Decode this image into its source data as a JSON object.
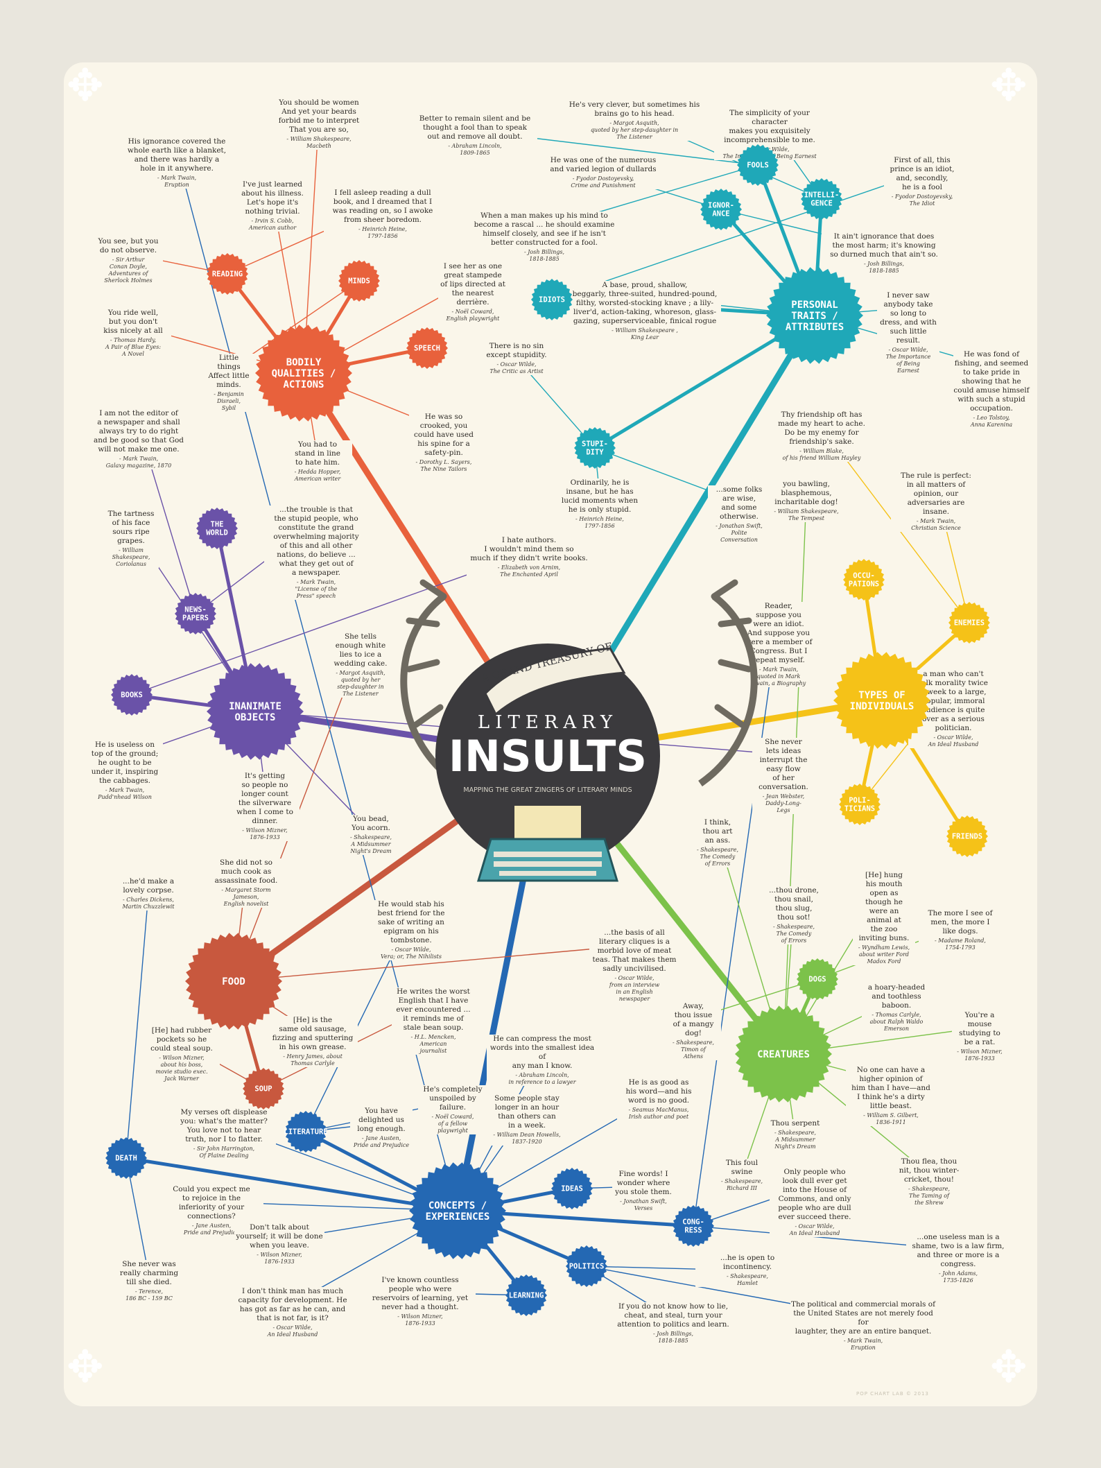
{
  "title": {
    "banner": "A GRAND TREASURY OF",
    "line1": "LITERARY",
    "line2": "INSULTS",
    "subtitle": "MAPPING THE GREAT ZINGERS OF LITERARY MINDS"
  },
  "credit": "POP CHART LAB © 2013",
  "colors": {
    "bodily": "#e8613c",
    "personal": "#1fa8b8",
    "inanimate": "#6a52a8",
    "types": "#f5c218",
    "creatures": "#7cc24a",
    "concepts": "#2468b3",
    "food": "#c8583e",
    "background": "#faf6ea"
  },
  "hubs": [
    {
      "id": "bodily",
      "label": "BODILY\nQUALITIES /\nACTIONS",
      "color": "#e8613c",
      "size": "major"
    },
    {
      "id": "reading",
      "label": "READING",
      "color": "#e8613c",
      "size": "minor"
    },
    {
      "id": "minds",
      "label": "MINDS",
      "color": "#e8613c",
      "size": "minor"
    },
    {
      "id": "speech",
      "label": "SPEECH",
      "color": "#e8613c",
      "size": "minor"
    },
    {
      "id": "personal",
      "label": "PERSONAL\nTRAITS /\nATTRIBUTES",
      "color": "#1fa8b8",
      "size": "major"
    },
    {
      "id": "fools",
      "label": "FOOLS",
      "color": "#1fa8b8",
      "size": "minor"
    },
    {
      "id": "ignorance",
      "label": "IGNOR-\nANCE",
      "color": "#1fa8b8",
      "size": "minor"
    },
    {
      "id": "intelligence",
      "label": "INTELLI-\nGENCE",
      "color": "#1fa8b8",
      "size": "minor"
    },
    {
      "id": "idiots",
      "label": "IDIOTS",
      "color": "#1fa8b8",
      "size": "minor"
    },
    {
      "id": "stupidity",
      "label": "STUPI-\nDITY",
      "color": "#1fa8b8",
      "size": "minor"
    },
    {
      "id": "inanimate",
      "label": "INANIMATE\nOBJECTS",
      "color": "#6a52a8",
      "size": "major"
    },
    {
      "id": "world",
      "label": "THE\nWORLD",
      "color": "#6a52a8",
      "size": "minor"
    },
    {
      "id": "newspapers",
      "label": "NEWS-\nPAPERS",
      "color": "#6a52a8",
      "size": "minor"
    },
    {
      "id": "books",
      "label": "BOOKS",
      "color": "#6a52a8",
      "size": "minor"
    },
    {
      "id": "types",
      "label": "TYPES OF\nINDIVIDUALS",
      "color": "#f5c218",
      "size": "major"
    },
    {
      "id": "occupations",
      "label": "OCCU-\nPATIONS",
      "color": "#f5c218",
      "size": "minor"
    },
    {
      "id": "enemies",
      "label": "ENEMIES",
      "color": "#f5c218",
      "size": "minor"
    },
    {
      "id": "politicians",
      "label": "POLI-\nTICIANS",
      "color": "#f5c218",
      "size": "minor"
    },
    {
      "id": "friends",
      "label": "FRIENDS",
      "color": "#f5c218",
      "size": "minor"
    },
    {
      "id": "food",
      "label": "FOOD",
      "color": "#c8583e",
      "size": "major"
    },
    {
      "id": "soup",
      "label": "SOUP",
      "color": "#c8583e",
      "size": "minor"
    },
    {
      "id": "creatures",
      "label": "CREATURES",
      "color": "#7cc24a",
      "size": "major"
    },
    {
      "id": "dogs",
      "label": "DOGS",
      "color": "#7cc24a",
      "size": "minor"
    },
    {
      "id": "concepts",
      "label": "CONCEPTS /\nEXPERIENCES",
      "color": "#2468b3",
      "size": "major"
    },
    {
      "id": "death",
      "label": "DEATH",
      "color": "#2468b3",
      "size": "minor"
    },
    {
      "id": "literature",
      "label": "LITERATURE",
      "color": "#2468b3",
      "size": "minor"
    },
    {
      "id": "ideas",
      "label": "IDEAS",
      "color": "#2468b3",
      "size": "minor"
    },
    {
      "id": "congress",
      "label": "CONG-\nRESS",
      "color": "#2468b3",
      "size": "minor"
    },
    {
      "id": "politics",
      "label": "POLITICS",
      "color": "#2468b3",
      "size": "minor"
    },
    {
      "id": "learning",
      "label": "LEARNING",
      "color": "#2468b3",
      "size": "minor"
    }
  ],
  "quotes": [
    {
      "text": "You should be women\nAnd yet your beards\nforbid me to interpret\nThat you are so,",
      "attr": "- William Shakespeare,\nMacbeth"
    },
    {
      "text": "His ignorance covered the\nwhole earth like a blanket,\nand there was hardly a\nhole in it anywhere.",
      "attr": "- Mark Twain,\nEruption"
    },
    {
      "text": "I've just learned\nabout his illness.\nLet's hope it's\nnothing trivial.",
      "attr": "- Irvin S. Cobb,\nAmerican author"
    },
    {
      "text": "I fell asleep reading a dull\nbook, and I dreamed that I\nwas reading on, so I awoke\nfrom sheer boredom.",
      "attr": "- Heinrich Heine,\n1797-1856"
    },
    {
      "text": "Better to remain silent and be\nthought a fool than to speak\nout and remove all doubt.",
      "attr": "- Abraham Lincoln,\n1809-1865"
    },
    {
      "text": "He's very clever, but sometimes his\nbrains go to his head.",
      "attr": "- Margot Asquith,\nquoted by her step-daughter in\nThe Listener"
    },
    {
      "text": "The simplicity of your character\nmakes you exquisitely\nincomprehensible to me.",
      "attr": "- Oscar Wilde,\nThe Importance of Being Earnest"
    },
    {
      "text": "He was one of the numerous\nand varied legion of dullards",
      "attr": "- Fyodor Dostoyevsky,\nCrime and Punishment"
    },
    {
      "text": "First of all, this\nprince is an idiot,\nand, secondly,\nhe is a fool",
      "attr": "- Fyodor Dostoyevsky,\nThe Idiot"
    },
    {
      "text": "When a man makes up his mind to\nbecome a rascal ... he should examine\nhimself closely, and see if he isn't\nbetter constructed for a fool.",
      "attr": "- Josh Billings,\n1818-1885"
    },
    {
      "text": "It ain't ignorance that does\nthe most harm; it's knowing\nso durned much that ain't so.",
      "attr": "- Josh Billings,\n1818-1885"
    },
    {
      "text": "You see, but you\ndo not observe.",
      "attr": "- Sir Arthur\nConan Doyle,\nAdventures of\nSherlock Holmes"
    },
    {
      "text": "I see her as one\ngreat stampede\nof lips directed at\nthe nearest\nderrière.",
      "attr": "- Noël Coward,\nEnglish playwright"
    },
    {
      "text": "A base, proud, shallow,\nbeggarly, three-suited, hundred-pound,\nfilthy, worsted-stocking knave ; a lily-\nliver'd, action-taking, whoreson, glass-\ngazing, superserviceable, finical rogue",
      "attr": "- William Shakespeare ,\nKing Lear"
    },
    {
      "text": "I never saw\nanybody take\nso long to\ndress, and with\nsuch little\nresult.",
      "attr": "- Oscar Wilde,\nThe Importance\nof Being\nEarnest"
    },
    {
      "text": "You ride well,\nbut you don't\nkiss nicely at all",
      "attr": "- Thomas Hardy,\nA Pair of Blue Eyes:\nA Novel"
    },
    {
      "text": "Little\nthings\nAffect little\nminds.",
      "attr": "- Benjamin\nDisraeli,\nSybil"
    },
    {
      "text": "There is no sin\nexcept stupidity.",
      "attr": "- Oscar Wilde,\nThe Critic as Artist"
    },
    {
      "text": "He was fond of\nfishing, and seemed\nto take pride in\nshowing that he\ncould amuse himself\nwith such a stupid\noccupation.",
      "attr": "- Leo Tolstoy,\nAnna Karenina"
    },
    {
      "text": "I am not the editor of\na newspaper and shall\nalways try to do right\nand be good so that God\nwill not make me one.",
      "attr": "- Mark Twain,\nGalaxy magazine, 1870"
    },
    {
      "text": "He was so\ncrooked, you\ncould have used\nhis spine for a\nsafety-pin.",
      "attr": "- Dorothy L. Sayers,\nThe Nine Tailors"
    },
    {
      "text": "Thy friendship oft has\nmade my heart to ache.\nDo be my enemy for\nfriendship's sake.",
      "attr": "- William Blake,\nof his friend William Hayley"
    },
    {
      "text": "You had to\nstand in line\nto hate him.",
      "attr": "- Hedda Hopper,\nAmerican writer"
    },
    {
      "text": "Ordinarily, he is\ninsane, but he has\nlucid moments when\nhe is only stupid.",
      "attr": "- Heinrich Heine,\n1797-1856"
    },
    {
      "text": "you bawling,\nblasphemous,\nincharitable dog!",
      "attr": "- William Shakespeare,\nThe Tempest"
    },
    {
      "text": "The rule is perfect:\nin all matters of\nopinion, our\nadversaries are\ninsane.",
      "attr": "- Mark Twain,\nChristian Science"
    },
    {
      "text": "The tartness\nof his face\nsours ripe\ngrapes.",
      "attr": "- William\nShakespeare,\nCoriolanus"
    },
    {
      "text": "...the trouble is that\nthe stupid people, who\nconstitute the grand\noverwhelming majority\nof this and all other\nnations, do believe ...\nwhat they get out of\na newspaper.",
      "attr": "- Mark Twain,\n\"License of the\nPress\" speech"
    },
    {
      "text": "...some folks\nare wise,\nand some\notherwise.",
      "attr": "- Jonathan Swift,\nPolite\nConversation"
    },
    {
      "text": "I hate authors.\nI wouldn't mind them so\nmuch if they didn't write books.",
      "attr": "- Elizabeth von Arnim,\nThe Enchanted April"
    },
    {
      "text": "Reader,\nsuppose you\nwere an idiot.\nAnd suppose you\nwere a member of\nCongress. But I\nrepeat myself.",
      "attr": "- Mark Twain,\nquoted in Mark\nTwain, a Biography"
    },
    {
      "text": "She tells\nenough white\nlies to ice a\nwedding cake.",
      "attr": "- Margot Asquith,\nquoted by her\nstep-daughter in\nThe Listener"
    },
    {
      "text": "a man who can't\ntalk morality twice\na week to a large,\npopular, immoral\naudience is quite\nover as a serious\npolitician.",
      "attr": "- Oscar Wilde,\nAn Ideal Husband"
    },
    {
      "text": "He is useless on\ntop of the ground;\nhe ought to be\nunder it, inspiring\nthe cabbages.",
      "attr": "- Mark Twain,\nPudd'nhead Wilson"
    },
    {
      "text": "It's getting\nso people no\nlonger count\nthe silverware\nwhen I come to\ndinner.",
      "attr": "- Wilson Mizner,\n1876-1933"
    },
    {
      "text": "She never\nlets ideas\ninterrupt the\neasy flow\nof her\nconversation.",
      "attr": "- Jean Webster,\nDaddy-Long-\nLegs"
    },
    {
      "text": "You bead,\nYou acorn.",
      "attr": "- Shakespeare,\nA Midsummer\nNight's Dream"
    },
    {
      "text": "I think,\nthou art\nan ass.",
      "attr": "- Shakespeare,\nThe Comedy\nof Errors"
    },
    {
      "text": "She did not so\nmuch cook as\nassassinate food.",
      "attr": "- Margaret Storm\nJameson,\nEnglish novelist"
    },
    {
      "text": "[He] hung\nhis mouth\nopen as\nthough he\nwere an\nanimal at\nthe zoo\ninviting buns.",
      "attr": "- Wyndham Lewis,\nabout writer Ford\nMadox Ford"
    },
    {
      "text": "...he'd make a\nlovely corpse.",
      "attr": "- Charles Dickens,\nMartin Chuzzlewit"
    },
    {
      "text": "He would stab his\nbest friend for the\nsake of writing an\nepigram on his\ntombstone.",
      "attr": "- Oscar Wilde,\nVera; or, The Nihilists"
    },
    {
      "text": "...thou drone,\nthou snail,\nthou slug,\nthou sot!",
      "attr": "- Shakespeare,\nThe Comedy\nof Errors"
    },
    {
      "text": "The more I see of\nmen, the more I\nlike dogs.",
      "attr": "- Madame Roland,\n1754-1793"
    },
    {
      "text": "...the basis of all\nliterary cliques is a\nmorbid love of meat\nteas. That makes them\nsadly uncivilised.",
      "attr": "- Oscar Wilde,\nfrom an interview\nin an English\nnewspaper"
    },
    {
      "text": "He writes the worst\nEnglish that I have\never encountered ...\nit reminds me of\nstale bean soup.",
      "attr": "- H.L. Mencken,\nAmerican\njournalist"
    },
    {
      "text": "[He] is the\nsame old sausage,\nfizzing and sputtering\nin his own grease.",
      "attr": "- Henry James, about\nThomas Carlyle"
    },
    {
      "text": "Away,\nthou issue\nof a mangy\ndog!",
      "attr": "- Shakespeare,\nTimon of\nAthens"
    },
    {
      "text": "a hoary-headed\nand toothless\nbaboon.",
      "attr": "- Thomas Carlyle,\nabout Ralph Waldo\nEmerson"
    },
    {
      "text": "[He] had rubber\npockets so he\ncould steal soup.",
      "attr": "- Wilson Mizner,\nabout his boss,\nmovie studio exec.\nJack Warner"
    },
    {
      "text": "You're a\nmouse\nstudying to\nbe a rat.",
      "attr": "- Wilson Mizner,\n1876-1933"
    },
    {
      "text": "He can compress the most\nwords into the smallest idea of\nany man I know.",
      "attr": "- Abraham Lincoln,\nin reference to a lawyer"
    },
    {
      "text": "No one can have a\nhigher opinion of\nhim than I have—and\nI think he's a dirty\nlittle beast.",
      "attr": "- William S. Gilbert,\n1836-1911"
    },
    {
      "text": "He's completely\nunspoiled by\nfailure.",
      "attr": "- Noël Coward,\nof a fellow\nplaywright"
    },
    {
      "text": "My verses oft displease\nyou: what's the matter?\nYou love not to hear\ntruth, nor I to flatter.",
      "attr": "- Sir John Harrington,\nOf Plaine Dealing"
    },
    {
      "text": "You have\ndelighted us\nlong enough.",
      "attr": "- Jane Austen,\nPride and Prejudice"
    },
    {
      "text": "Some people stay\nlonger in an hour\nthan others can\nin a week.",
      "attr": "- William Dean Howells,\n1837-1920"
    },
    {
      "text": "He is as good as\nhis word—and his\nword is no good.",
      "attr": "- Seamus MacManus,\nIrish author and poet"
    },
    {
      "text": "Thou serpent",
      "attr": "- Shakespeare,\nA Midsummer\nNight's Dream"
    },
    {
      "text": "Thou flea, thou\nnit, thou winter-\ncricket, thou!",
      "attr": "- Shakespeare,\nThe Taming of\nthe Shrew"
    },
    {
      "text": "This foul\nswine",
      "attr": "- Shakespeare,\nRichard III"
    },
    {
      "text": "Fine words! I\nwonder where\nyou stole them.",
      "attr": "- Jonathan Swift,\nVerses"
    },
    {
      "text": "Only people who\nlook dull ever get\ninto the House of\nCommons, and only\npeople who are dull\never succeed there.",
      "attr": "- Oscar Wilde,\nAn Ideal Husband"
    },
    {
      "text": "Could you expect me\nto rejoice in the\ninferiority of your\nconnections?",
      "attr": "- Jane Austen,\nPride and Prejudice"
    },
    {
      "text": "Don't talk about\nyourself; it will be done\nwhen you leave.",
      "attr": "- Wilson Mizner,\n1876-1933"
    },
    {
      "text": "...one useless man is a\nshame, two is a law firm,\nand three or more is a\ncongress.",
      "attr": "- John Adams,\n1735-1826"
    },
    {
      "text": "...he is open to incontinency.",
      "attr": "- Shakespeare,\nHamlet"
    },
    {
      "text": "She never was\nreally charming\ntill she died.",
      "attr": "- Terence,\n186 BC - 159 BC"
    },
    {
      "text": "I don't think man has much\ncapacity for development. He\nhas got as far as he can, and\nthat is not far, is it?",
      "attr": "- Oscar Wilde,\nAn Ideal Husband"
    },
    {
      "text": "I've known countless\npeople who were\nreservoirs of learning, yet\nnever had a thought.",
      "attr": "- Wilson Mizner,\n1876-1933"
    },
    {
      "text": "If you do not know how to lie,\ncheat, and steal, turn your\nattention to politics and learn.",
      "attr": "- Josh Billings,\n1818-1885"
    },
    {
      "text": "The political and commercial morals of\nthe United States are not merely food for\nlaughter, they are an entire banquet.",
      "attr": "- Mark Twain,\nEruption"
    }
  ]
}
